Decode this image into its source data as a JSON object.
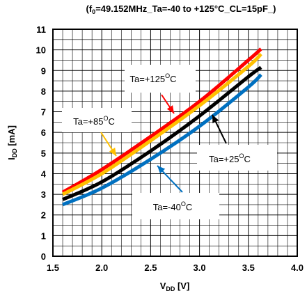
{
  "chart_data": {
    "type": "line",
    "title": "(f0=49.152MHz_Ta=-40 to +125°C_CL=15pF_)",
    "title_parts": {
      "pre": "(f",
      "sub": "0",
      "post": "=49.152MHz_Ta=-40 to +125°C_CL=15pF_)"
    },
    "xlabel": "VDD [V]",
    "xlabel_parts": {
      "main": "V",
      "sub": "DD",
      "post": " [V]"
    },
    "ylabel": "IDD [mA]",
    "ylabel_parts": {
      "main": "I",
      "sub": "DD",
      "post": " [mA]"
    },
    "xlim": [
      1.5,
      4.0
    ],
    "ylim": [
      0,
      11
    ],
    "x_ticks": [
      "1.5",
      "2.0",
      "2.5",
      "3.0",
      "3.5",
      "4.0"
    ],
    "y_ticks": [
      "0",
      "1",
      "2",
      "3",
      "4",
      "5",
      "6",
      "7",
      "8",
      "9",
      "10",
      "11"
    ],
    "grid": true,
    "series": [
      {
        "name": "Ta=+125°C",
        "color": "#ff0000",
        "x": [
          1.6,
          2.0,
          2.5,
          3.0,
          3.5,
          3.63
        ],
        "y": [
          3.1,
          4.2,
          5.8,
          7.5,
          9.5,
          10.05
        ]
      },
      {
        "name": "Ta=+85°C",
        "color": "#ffc000",
        "x": [
          1.6,
          2.0,
          2.5,
          3.0,
          3.5,
          3.63
        ],
        "y": [
          3.0,
          4.0,
          5.6,
          7.3,
          9.2,
          9.8
        ]
      },
      {
        "name": "Ta=+25°C",
        "color": "#000000",
        "x": [
          1.6,
          2.0,
          2.5,
          3.0,
          3.5,
          3.63
        ],
        "y": [
          2.75,
          3.6,
          5.1,
          6.8,
          8.7,
          9.15
        ]
      },
      {
        "name": "Ta=-40°C",
        "color": "#0070c0",
        "x": [
          1.6,
          2.0,
          2.5,
          3.0,
          3.5,
          3.63
        ],
        "y": [
          2.5,
          3.3,
          4.7,
          6.3,
          8.2,
          8.8
        ]
      }
    ],
    "annotations": [
      {
        "label": "Ta=+125",
        "sup": "O",
        "unit": "C",
        "color": "#ff0000"
      },
      {
        "label": "Ta=+85",
        "sup": "O",
        "unit": "C",
        "color": "#ffc000"
      },
      {
        "label": "Ta=+25",
        "sup": "O",
        "unit": "C",
        "color": "#000000"
      },
      {
        "label": "Ta=-40",
        "sup": "O",
        "unit": "C",
        "color": "#0070c0"
      }
    ]
  }
}
